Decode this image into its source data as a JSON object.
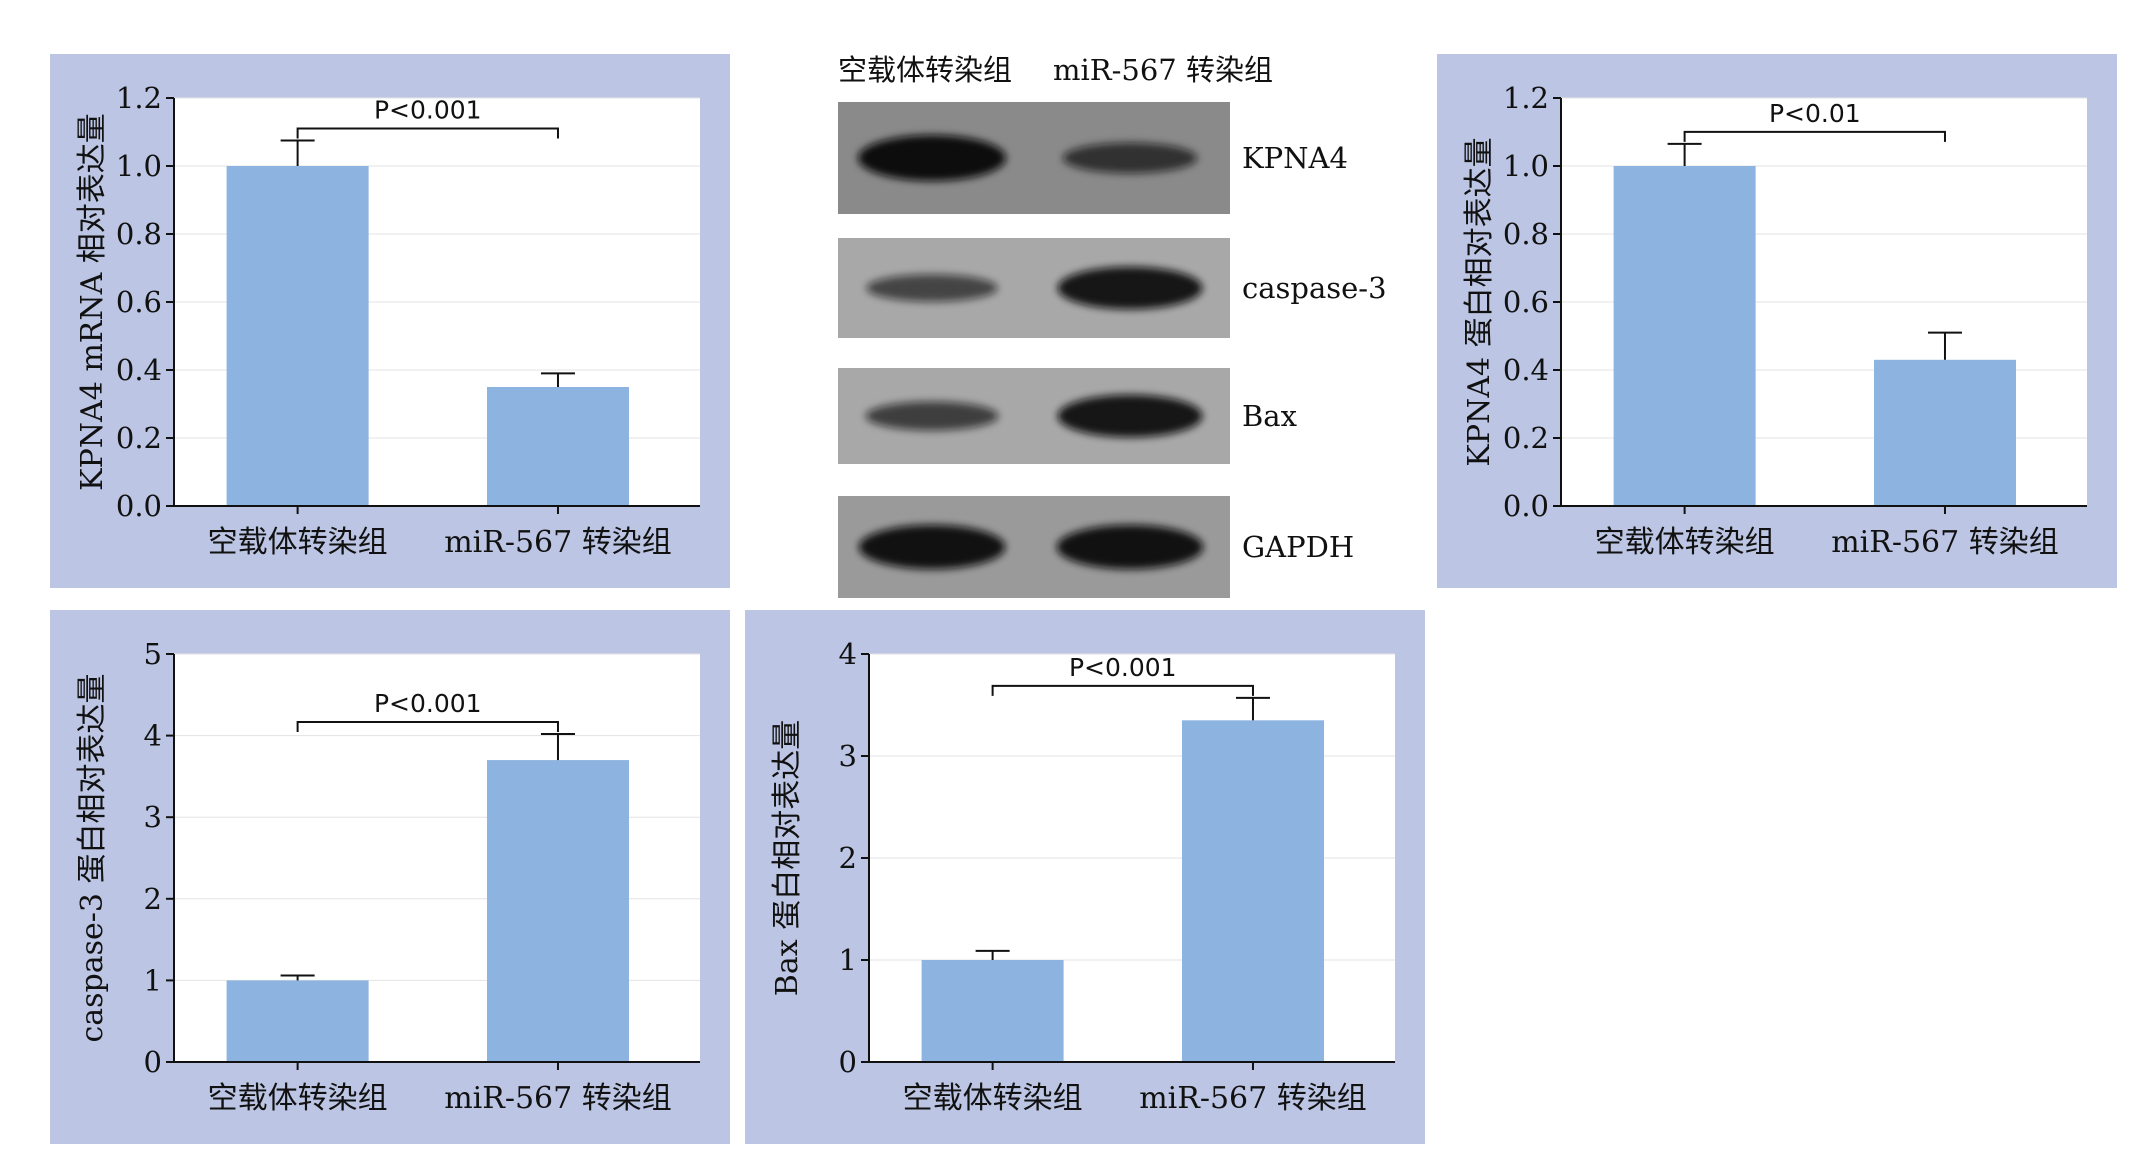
{
  "figure": {
    "background_color": "#ffffff",
    "panel_color": "#bcc5e3",
    "bar_color": "#8db3e0"
  },
  "chart_data": [
    {
      "id": "kpna4-mrna",
      "type": "bar",
      "categories": [
        "空载体转染组",
        "miR-567 转染组"
      ],
      "values": [
        1.0,
        0.35
      ],
      "errors": [
        0.075,
        0.04
      ],
      "ylabel": "KPNA4 mRNA 相对表达量",
      "ylim": [
        0,
        1.2
      ],
      "yticks": [
        "0.0",
        "0.2",
        "0.4",
        "0.6",
        "0.8",
        "1.0",
        "1.2"
      ],
      "significance": "P<0.001",
      "grid": true
    },
    {
      "id": "kpna4-protein",
      "type": "bar",
      "categories": [
        "空载体转染组",
        "miR-567 转染组"
      ],
      "values": [
        1.0,
        0.43
      ],
      "errors": [
        0.065,
        0.08
      ],
      "ylabel": "KPNA4 蛋白相对表达量",
      "ylim": [
        0,
        1.2
      ],
      "yticks": [
        "0.0",
        "0.2",
        "0.4",
        "0.6",
        "0.8",
        "1.0",
        "1.2"
      ],
      "significance": "P<0.01",
      "grid": true
    },
    {
      "id": "caspase3-protein",
      "type": "bar",
      "categories": [
        "空载体转染组",
        "miR-567 转染组"
      ],
      "values": [
        1.0,
        3.7
      ],
      "errors": [
        0.06,
        0.32
      ],
      "ylabel": "caspase-3 蛋白相对表达量",
      "ylim": [
        0,
        5
      ],
      "yticks": [
        "0",
        "1",
        "2",
        "3",
        "4",
        "5"
      ],
      "significance": "P<0.001",
      "grid": true
    },
    {
      "id": "bax-protein",
      "type": "bar",
      "categories": [
        "空载体转染组",
        "miR-567 转染组"
      ],
      "values": [
        1.0,
        3.35
      ],
      "errors": [
        0.09,
        0.22
      ],
      "ylabel": "Bax 蛋白相对表达量",
      "ylim": [
        0,
        4
      ],
      "yticks": [
        "0",
        "1",
        "2",
        "3",
        "4"
      ],
      "significance": "P<0.001",
      "grid": true
    }
  ],
  "western_blot": {
    "lane_labels": [
      "空载体转染组",
      "miR-567 转染组"
    ],
    "bands": [
      {
        "label": "KPNA4",
        "intensity": [
          1.0,
          0.55
        ]
      },
      {
        "label": "caspase-3",
        "intensity": [
          0.45,
          0.9
        ]
      },
      {
        "label": "Bax",
        "intensity": [
          0.5,
          0.9
        ]
      },
      {
        "label": "GAPDH",
        "intensity": [
          0.95,
          0.95
        ]
      }
    ]
  }
}
